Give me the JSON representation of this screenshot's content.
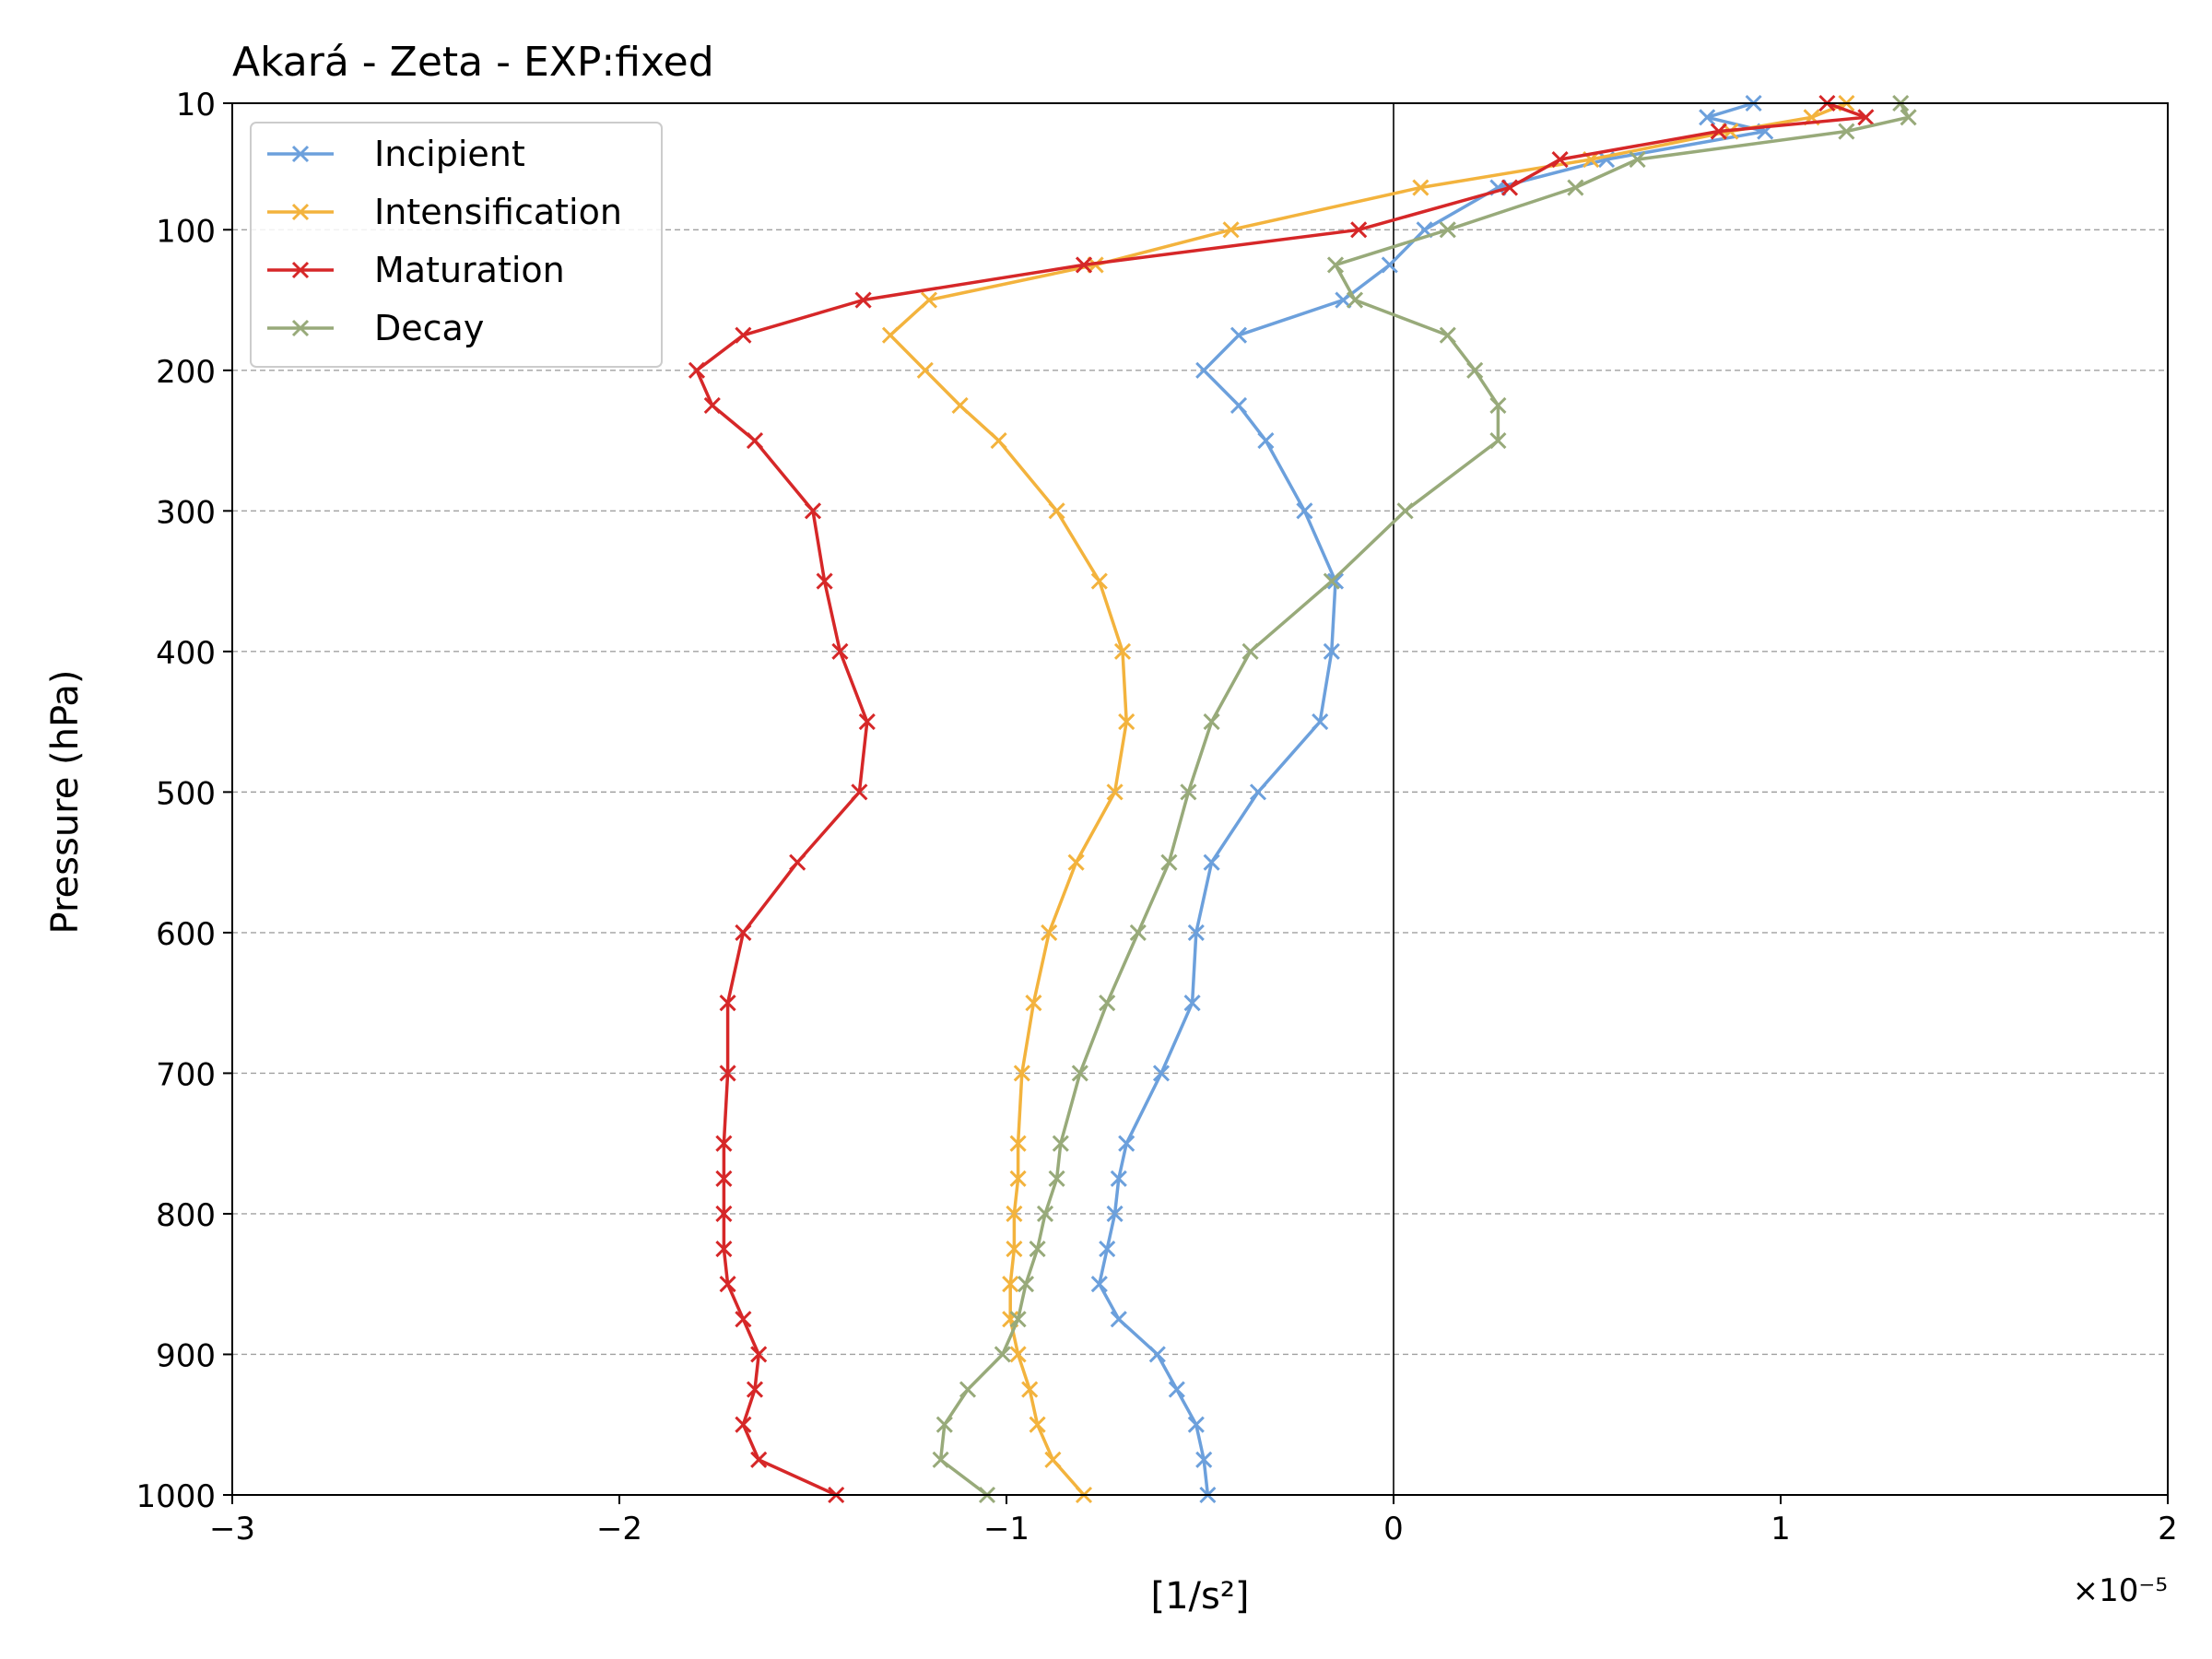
{
  "chart_data": {
    "type": "line",
    "title": "Akará - Zeta - EXP:fixed",
    "xlabel": "[1/s²]",
    "ylabel": "Pressure (hPa)",
    "x_offset_label": "×10⁻⁵",
    "xlim": [
      -3,
      2
    ],
    "ylim": [
      1000,
      10
    ],
    "xticks": [
      -3,
      -2,
      -1,
      0,
      1,
      2
    ],
    "xtick_labels": [
      "−3",
      "−2",
      "−1",
      "0",
      "1",
      "2"
    ],
    "yticks": [
      10,
      100,
      200,
      300,
      400,
      500,
      600,
      700,
      800,
      900,
      1000
    ],
    "ytick_labels": [
      "10",
      "100",
      "200",
      "300",
      "400",
      "500",
      "600",
      "700",
      "800",
      "900",
      "1000"
    ],
    "grid": "horizontal dashed at y ticks",
    "legend_position": "top-left",
    "pressure_levels": [
      1000,
      975,
      950,
      925,
      900,
      875,
      850,
      825,
      800,
      775,
      750,
      700,
      650,
      600,
      550,
      500,
      450,
      400,
      350,
      300,
      250,
      225,
      200,
      175,
      150,
      125,
      100,
      70,
      50,
      30,
      20,
      10
    ],
    "series": [
      {
        "name": "Incipient",
        "color": "#6ca0dc",
        "values": [
          -0.48,
          -0.49,
          -0.51,
          -0.56,
          -0.61,
          -0.71,
          -0.76,
          -0.74,
          -0.72,
          -0.71,
          -0.69,
          -0.6,
          -0.52,
          -0.51,
          -0.47,
          -0.35,
          -0.19,
          -0.16,
          -0.15,
          -0.23,
          -0.33,
          -0.4,
          -0.49,
          -0.4,
          -0.13,
          -0.01,
          0.08,
          0.27,
          0.55,
          0.96,
          0.81,
          0.93
        ]
      },
      {
        "name": "Intensification",
        "color": "#f3b33d",
        "values": [
          -0.8,
          -0.88,
          -0.92,
          -0.94,
          -0.97,
          -0.99,
          -0.99,
          -0.98,
          -0.98,
          -0.97,
          -0.97,
          -0.96,
          -0.93,
          -0.89,
          -0.82,
          -0.72,
          -0.69,
          -0.7,
          -0.76,
          -0.87,
          -1.02,
          -1.12,
          -1.21,
          -1.3,
          -1.2,
          -0.77,
          -0.42,
          0.07,
          0.51,
          0.87,
          1.08,
          1.17
        ]
      },
      {
        "name": "Maturation",
        "color": "#d62728",
        "values": [
          -1.44,
          -1.64,
          -1.68,
          -1.65,
          -1.64,
          -1.68,
          -1.72,
          -1.73,
          -1.73,
          -1.73,
          -1.73,
          -1.72,
          -1.72,
          -1.68,
          -1.54,
          -1.38,
          -1.36,
          -1.43,
          -1.47,
          -1.5,
          -1.65,
          -1.76,
          -1.8,
          -1.68,
          -1.37,
          -0.8,
          -0.09,
          0.3,
          0.43,
          0.84,
          1.22,
          1.12
        ]
      },
      {
        "name": "Decay",
        "color": "#98aa7a",
        "values": [
          -1.05,
          -1.17,
          -1.16,
          -1.1,
          -1.01,
          -0.97,
          -0.95,
          -0.92,
          -0.9,
          -0.87,
          -0.86,
          -0.81,
          -0.74,
          -0.66,
          -0.58,
          -0.53,
          -0.47,
          -0.37,
          -0.16,
          0.03,
          0.27,
          0.27,
          0.21,
          0.14,
          -0.1,
          -0.15,
          0.14,
          0.47,
          0.63,
          1.17,
          1.33,
          1.31
        ]
      }
    ]
  }
}
